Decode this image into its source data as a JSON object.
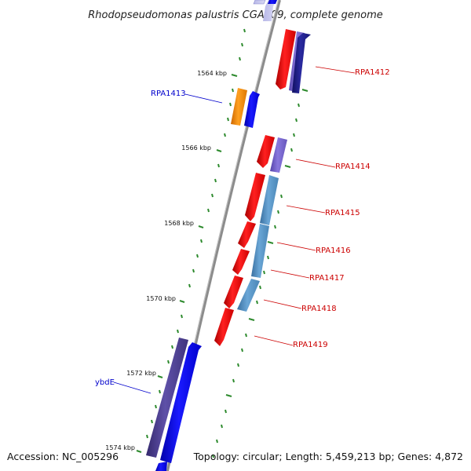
{
  "title": "Rhodopseudomonas palustris CGA009, complete genome",
  "footer": {
    "accession": "Accession: NC_005296",
    "topology": "Topology: circular; Length: 5,459,213 bp; Genes: 4,872"
  },
  "ticks": [
    {
      "label": "1564 kbp"
    },
    {
      "label": "1566 kbp"
    },
    {
      "label": "1568 kbp"
    },
    {
      "label": "1570 kbp"
    },
    {
      "label": "1572 kbp"
    },
    {
      "label": "1574 kbp"
    }
  ],
  "gene_labels": [
    {
      "id": "RPA1412",
      "text": "RPA1412",
      "color": "#cc0000"
    },
    {
      "id": "RPA1413",
      "text": "RPA1413",
      "color": "#0000cc"
    },
    {
      "id": "RPA1414",
      "text": "RPA1414",
      "color": "#cc0000"
    },
    {
      "id": "RPA1415",
      "text": "RPA1415",
      "color": "#cc0000"
    },
    {
      "id": "RPA1416",
      "text": "RPA1416",
      "color": "#cc0000"
    },
    {
      "id": "RPA1417",
      "text": "RPA1417",
      "color": "#cc0000"
    },
    {
      "id": "RPA1418",
      "text": "RPA1418",
      "color": "#cc0000"
    },
    {
      "id": "RPA1419",
      "text": "RPA1419",
      "color": "#cc0000"
    },
    {
      "id": "ybdE",
      "text": "ybdE",
      "color": "#0000cc"
    }
  ],
  "colors": {
    "backbone": "#8c8c8c",
    "tick": "#2d8a2d",
    "red_gene": "#ee0000",
    "blue_gene": "#0000ee",
    "lavender_gene": "#7766cc",
    "navy_gene": "#1a1a88",
    "steel_gene": "#4f8fc0",
    "orange_gene": "#ee8800",
    "slate_gene": "#4a3d8c"
  }
}
